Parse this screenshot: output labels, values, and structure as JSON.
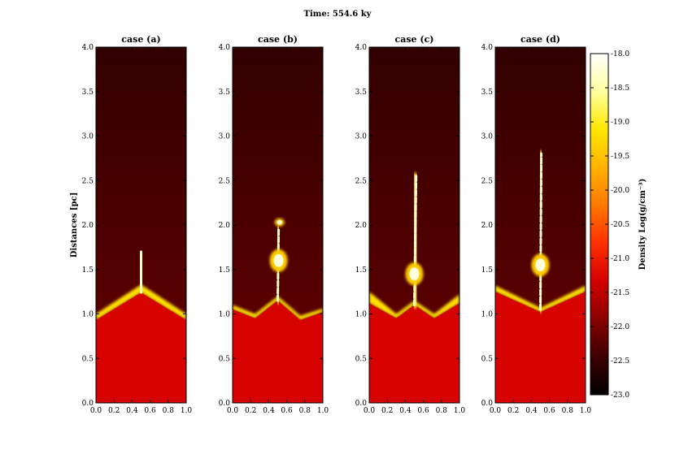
{
  "chart_data": {
    "type": "heatmap",
    "title": "Time: 554.6 ky",
    "ylabel": "Distances [pc]",
    "xlim": [
      0.0,
      1.0
    ],
    "ylim": [
      0.0,
      4.0
    ],
    "x_ticks": [
      "0.0",
      "0.2",
      "0.4",
      "0.6",
      "0.8",
      "1.0"
    ],
    "y_ticks": [
      "0.0",
      "0.5",
      "1.0",
      "1.5",
      "2.0",
      "2.5",
      "3.0",
      "3.5",
      "4.0"
    ],
    "panels": [
      {
        "title": "case (a)",
        "lower_layer_top": [
          [
            0.0,
            0.93
          ],
          [
            0.5,
            1.24
          ],
          [
            1.0,
            0.93
          ]
        ],
        "shocked_shell": [
          [
            0.0,
            1.0
          ],
          [
            0.5,
            1.33
          ],
          [
            1.0,
            1.0
          ]
        ],
        "filament": [
          [
            0.5,
            1.24
          ],
          [
            0.5,
            1.7
          ]
        ],
        "blobs": []
      },
      {
        "title": "case (b)",
        "lower_layer_top": [
          [
            0.0,
            1.05
          ],
          [
            0.25,
            0.95
          ],
          [
            0.5,
            1.15
          ],
          [
            0.75,
            0.93
          ],
          [
            1.0,
            1.02
          ]
        ],
        "shocked_shell": [
          [
            0.0,
            1.1
          ],
          [
            0.25,
            1.0
          ],
          [
            0.5,
            1.2
          ],
          [
            0.75,
            0.98
          ],
          [
            1.0,
            1.06
          ]
        ],
        "filament": [
          [
            0.5,
            1.15
          ],
          [
            0.51,
            1.95
          ]
        ],
        "blobs": [
          [
            0.51,
            1.6
          ],
          [
            0.52,
            2.03
          ]
        ]
      },
      {
        "title": "case (c)",
        "lower_layer_top": [
          [
            0.0,
            1.12
          ],
          [
            0.3,
            0.95
          ],
          [
            0.5,
            1.1
          ],
          [
            0.72,
            0.95
          ],
          [
            1.0,
            1.12
          ]
        ],
        "shocked_shell": [
          [
            0.0,
            1.25
          ],
          [
            0.3,
            1.0
          ],
          [
            0.5,
            1.15
          ],
          [
            0.72,
            1.0
          ],
          [
            1.0,
            1.22
          ]
        ],
        "filament": [
          [
            0.5,
            1.1
          ],
          [
            0.52,
            2.55
          ]
        ],
        "blobs": [
          [
            0.5,
            1.45
          ]
        ]
      },
      {
        "title": "case (d)",
        "lower_layer_top": [
          [
            0.0,
            1.25
          ],
          [
            0.5,
            1.02
          ],
          [
            1.0,
            1.25
          ]
        ],
        "shocked_shell": [
          [
            0.0,
            1.32
          ],
          [
            0.5,
            1.07
          ],
          [
            1.0,
            1.32
          ]
        ],
        "filament": [
          [
            0.5,
            1.05
          ],
          [
            0.51,
            2.8
          ]
        ],
        "blobs": [
          [
            0.5,
            1.55
          ]
        ]
      }
    ],
    "colorbar": {
      "label": "Density Log(g/cm⁻³)",
      "min": -23.0,
      "max": -18.0,
      "ticks": [
        "-18.0",
        "-18.5",
        "-19.0",
        "-19.5",
        "-20.0",
        "-20.5",
        "-21.0",
        "-21.5",
        "-22.0",
        "-22.5",
        "-23.0"
      ],
      "colormap": [
        "#000000",
        "#3d0000",
        "#8a0000",
        "#d40000",
        "#ff3000",
        "#ff7800",
        "#ffb300",
        "#ffe800",
        "#ffffa0",
        "#ffffff"
      ]
    },
    "background_density": -22.3,
    "lower_layer_density": -21.3,
    "shell_density": -19.2,
    "filament_density": -18.9
  }
}
